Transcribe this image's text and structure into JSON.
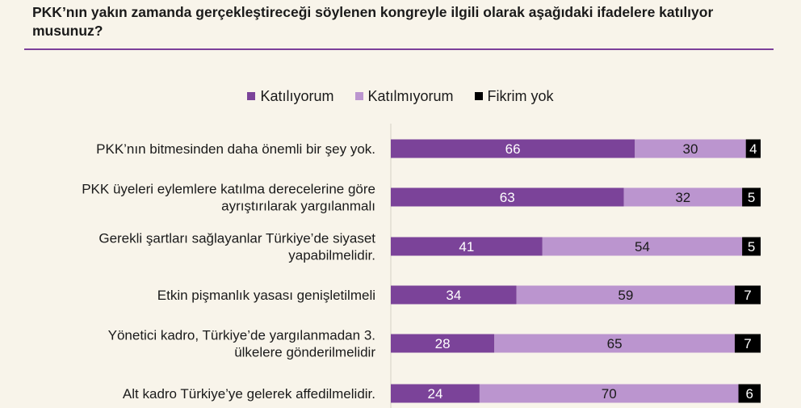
{
  "chart_data": {
    "type": "bar",
    "orientation": "horizontal",
    "stacked": true,
    "title": "PKK’nın yakın zamanda gerçekleştireceği söylenen kongreyle ilgili olarak aşağıdaki ifadelere katılıyor musunuz?",
    "legend_position": "top",
    "categories": [
      [
        "PKK’nın bitmesinden daha önemli bir şey yok."
      ],
      [
        "PKK üyeleri eylemlere katılma derecelerine göre",
        "ayrıştırılarak yargılanmalı"
      ],
      [
        "Gerekli şartları sağlayanlar Türkiye’de siyaset",
        "yapabilmelidir."
      ],
      [
        "Etkin pişmanlık yasası genişletilmeli"
      ],
      [
        "Yönetici kadro, Türkiye’de yargılanmadan 3.",
        "ülkelere gönderilmelidir"
      ],
      [
        "Alt kadro Türkiye’ye gelerek affedilmelidir."
      ]
    ],
    "series": [
      {
        "name": "Katılıyorum",
        "color": "#7b4399",
        "label_color": "#ffffff",
        "values": [
          66,
          63,
          41,
          34,
          28,
          24
        ]
      },
      {
        "name": "Katılmıyorum",
        "color": "#bb95cf",
        "label_color": "#1a1a1a",
        "values": [
          30,
          32,
          54,
          59,
          65,
          70
        ]
      },
      {
        "name": "Fikrim yok",
        "color": "#000000",
        "label_color": "#ffffff",
        "values": [
          4,
          5,
          5,
          7,
          7,
          6
        ]
      }
    ],
    "xlim": [
      0,
      100
    ],
    "grid": false
  }
}
